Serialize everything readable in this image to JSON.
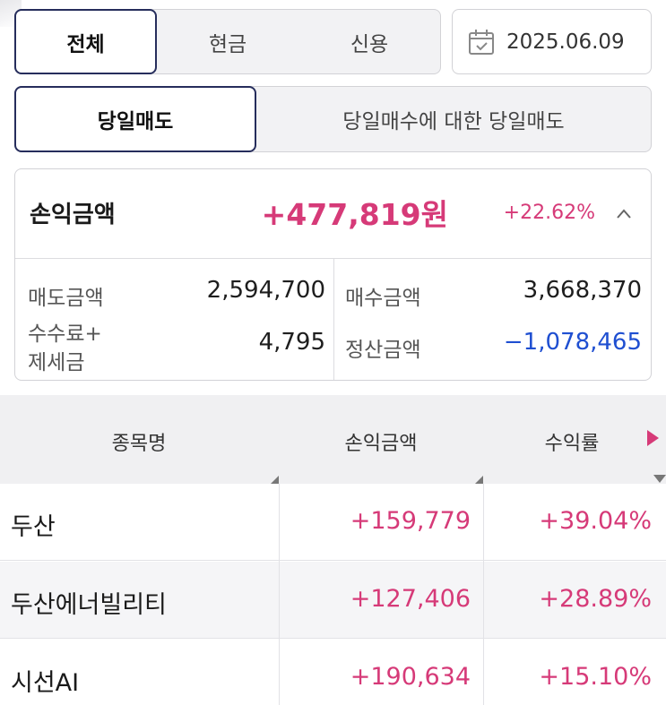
{
  "account_tabs": {
    "all": "전체",
    "cash": "현금",
    "credit": "신용",
    "active": "all"
  },
  "date": "2025.06.09",
  "sell_tabs": {
    "today_sell": "당일매도",
    "today_buy_sell": "당일매수에 대한 당일매도",
    "active": "today_sell"
  },
  "summary": {
    "pl_label": "손익금액",
    "pl_amount": "+477,819원",
    "pl_rate": "+22.62%",
    "sell_amount_label": "매도금액",
    "sell_amount": "2,594,700",
    "buy_amount_label": "매수금액",
    "buy_amount": "3,668,370",
    "fee_label_1": "수수료+",
    "fee_label_2": "제세금",
    "fee": "4,795",
    "settle_label": "정산금액",
    "settle": "−1,078,465"
  },
  "table": {
    "headers": {
      "name": "종목명",
      "pl": "손익금액",
      "rate": "수익률"
    },
    "rows": [
      {
        "name": "두산",
        "pl": "+159,779",
        "rate": "+39.04%"
      },
      {
        "name": "두산에너빌리티",
        "pl": "+127,406",
        "rate": "+28.89%"
      },
      {
        "name": "시선AI",
        "pl": "+190,634",
        "rate": "+15.10%"
      }
    ]
  },
  "colors": {
    "positive": "#d63a78",
    "negative": "#1f4fd1",
    "accent_border": "#262d5c"
  },
  "icons": {
    "date": "calendar-icon",
    "collapse": "chevron-up-icon",
    "scroll_right": "triangle-right-icon"
  }
}
